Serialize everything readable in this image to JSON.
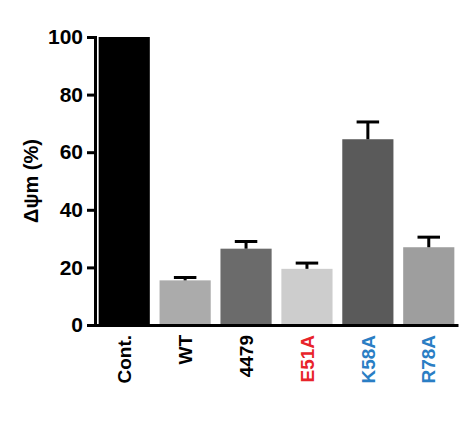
{
  "chart_data": {
    "type": "bar",
    "y_label": "Δψm (%)",
    "categories": [
      "Cont.",
      "WT",
      "4479",
      "E51A",
      "K58A",
      "R78A"
    ],
    "values": [
      100,
      15.5,
      26.5,
      19.5,
      64.5,
      27
    ],
    "errors": [
      null,
      1,
      2.5,
      2,
      6,
      3.5
    ],
    "colors": [
      "#000000",
      "#ababab",
      "#6b6b6b",
      "#cdcdcd",
      "#5a5a5a",
      "#9e9e9e"
    ],
    "ylim": [
      0,
      100
    ],
    "yticks": [
      0,
      20,
      40,
      60,
      80,
      100
    ],
    "grid": false
  }
}
